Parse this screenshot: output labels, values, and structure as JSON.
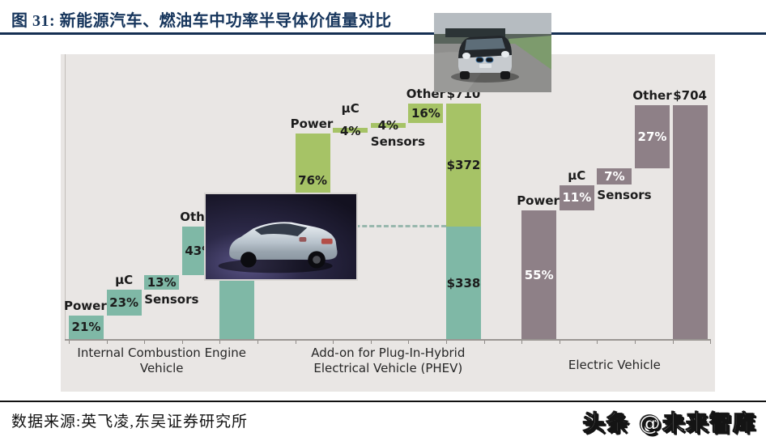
{
  "header": {
    "figure_label": "图 31:",
    "title": "新能源汽车、燃油车中功率半导体价值量对比"
  },
  "footer": {
    "source": "数据来源:英飞凌,东吴证券研究所",
    "watermark": "头条 @未来智库"
  },
  "colors": {
    "title_navy": "#16355c",
    "chart_background": "#e9e6e4",
    "ice_teal": "#7fb8a6",
    "phev_green": "#a6c366",
    "ev_mauve": "#8e8087"
  },
  "chart_data": {
    "type": "bar",
    "subtype": "waterfall",
    "unit": "share of power-semiconductor value per vehicle (%), totals in USD",
    "grid": false,
    "legend": "none",
    "dashed_line": {
      "at_usd": 338,
      "color": "#98b7ad"
    },
    "groups": [
      {
        "label": "Internal Combustion Engine Vehicle",
        "bar_color": "#7fb8a6",
        "pct_color": "#1c1c1c",
        "base_usd": 0,
        "total_usd": 338,
        "total_label": "$338",
        "segments": [
          {
            "name": "Power",
            "pct": 21
          },
          {
            "name": "µC",
            "pct": 23
          },
          {
            "name": "Sensors",
            "pct": 13
          },
          {
            "name": "Other",
            "pct": 43
          }
        ]
      },
      {
        "label": "Add-on for Plug-In-Hybrid Electrical Vehicle (PHEV)",
        "bar_color": "#a6c366",
        "pct_color": "#1c1c1c",
        "base_usd": 338,
        "base_color": "#7fb8a6",
        "base_label": "$338",
        "added_label": "$372",
        "total_usd": 710,
        "total_label": "$710",
        "segments": [
          {
            "name": "Power",
            "pct": 76
          },
          {
            "name": "µC",
            "pct": 4
          },
          {
            "name": "Sensors",
            "pct": 4
          },
          {
            "name": "Other",
            "pct": 16
          }
        ]
      },
      {
        "label": "Electric Vehicle",
        "bar_color": "#8e8087",
        "pct_color": "#ffffff",
        "base_usd": 0,
        "total_usd": 704,
        "total_label": "$704",
        "segments": [
          {
            "name": "Power",
            "pct": 55
          },
          {
            "name": "µC",
            "pct": 11
          },
          {
            "name": "Sensors",
            "pct": 7
          },
          {
            "name": "Other",
            "pct": 27
          }
        ]
      }
    ],
    "images": [
      {
        "name": "phev-sedan-photo",
        "desc": "silver hybrid sedan rear view on dark studio background"
      },
      {
        "name": "bmw-i3-photo",
        "desc": "electric car driving on country road"
      }
    ]
  }
}
